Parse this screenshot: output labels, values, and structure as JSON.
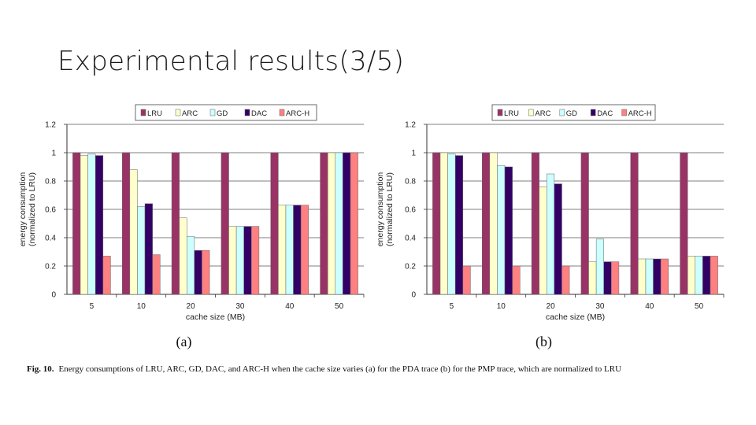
{
  "slide": {
    "title": "Experimental results(3/5)"
  },
  "caption": {
    "label": "Fig. 10.",
    "text": "Energy consumptions of LRU, ARC, GD, DAC, and ARC-H when the cache size varies (a) for the PDA trace (b) for the PMP trace, which are normalized to LRU"
  },
  "chart_data": [
    {
      "type": "bar",
      "sublabel": "(a)",
      "xlabel": "cache size (MB)",
      "ylabel": [
        "energy consumption",
        "(normalized to LRU)"
      ],
      "ylim": [
        0,
        1.2
      ],
      "yticks": [
        "0",
        "0.2",
        "0.4",
        "0.6",
        "0.8",
        "1",
        "1.2"
      ],
      "grid": true,
      "legend_position": "top",
      "categories": [
        "5",
        "10",
        "20",
        "30",
        "40",
        "50"
      ],
      "series": [
        {
          "name": "LRU",
          "color": "#993366",
          "values": [
            1.0,
            1.0,
            1.0,
            1.0,
            1.0,
            1.0
          ]
        },
        {
          "name": "ARC",
          "color": "#FFFFCC",
          "values": [
            0.98,
            0.88,
            0.54,
            0.48,
            0.63,
            1.0
          ]
        },
        {
          "name": "GD",
          "color": "#CCFFFF",
          "values": [
            0.99,
            0.62,
            0.41,
            0.48,
            0.63,
            1.0
          ]
        },
        {
          "name": "DAC",
          "color": "#330066",
          "values": [
            0.98,
            0.64,
            0.31,
            0.48,
            0.63,
            1.0
          ]
        },
        {
          "name": "ARC-H",
          "color": "#FF8080",
          "values": [
            0.27,
            0.28,
            0.31,
            0.48,
            0.63,
            1.0
          ]
        }
      ]
    },
    {
      "type": "bar",
      "sublabel": "(b)",
      "xlabel": "cache size (MB)",
      "ylabel": [
        "energy consumption",
        "(normalized to LRU)"
      ],
      "ylim": [
        0,
        1.2
      ],
      "yticks": [
        "0",
        "0.2",
        "0.4",
        "0.6",
        "0.8",
        "1",
        "1.2"
      ],
      "grid": true,
      "legend_position": "top",
      "categories": [
        "5",
        "10",
        "20",
        "30",
        "40",
        "50"
      ],
      "series": [
        {
          "name": "LRU",
          "color": "#993366",
          "values": [
            1.0,
            1.0,
            1.0,
            1.0,
            1.0,
            1.0
          ]
        },
        {
          "name": "ARC",
          "color": "#FFFFCC",
          "values": [
            1.0,
            1.0,
            0.76,
            0.23,
            0.25,
            0.27
          ]
        },
        {
          "name": "GD",
          "color": "#CCFFFF",
          "values": [
            0.99,
            0.91,
            0.85,
            0.39,
            0.25,
            0.27
          ]
        },
        {
          "name": "DAC",
          "color": "#330066",
          "values": [
            0.98,
            0.9,
            0.78,
            0.23,
            0.25,
            0.27
          ]
        },
        {
          "name": "ARC-H",
          "color": "#FF8080",
          "values": [
            0.2,
            0.2,
            0.2,
            0.23,
            0.25,
            0.27
          ]
        }
      ]
    }
  ]
}
